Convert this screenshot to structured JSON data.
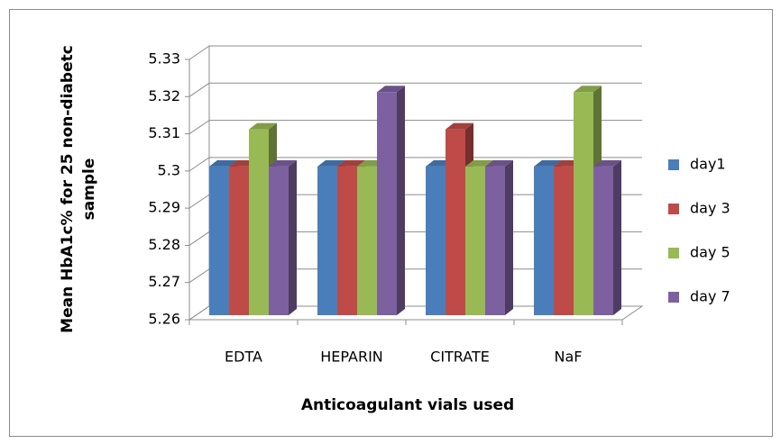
{
  "chart_data": {
    "type": "bar3d",
    "ylabel": [
      "Mean HbA1c% for 25 non-diabetc",
      "sample"
    ],
    "xlabel": "Anticoagulant vials used",
    "categories": [
      "EDTA",
      "HEPARIN",
      "CITRATE",
      "NaF"
    ],
    "series": [
      {
        "name": "day1",
        "color": "#4a7ebb",
        "values": [
          5.3,
          5.3,
          5.3,
          5.3
        ]
      },
      {
        "name": "day 3",
        "color": "#be4b48",
        "values": [
          5.3,
          5.3,
          5.31,
          5.3
        ]
      },
      {
        "name": "day 5",
        "color": "#98b954",
        "values": [
          5.31,
          5.3,
          5.3,
          5.32
        ]
      },
      {
        "name": "day 7",
        "color": "#7d60a0",
        "values": [
          5.3,
          5.32,
          5.3,
          5.3
        ]
      }
    ],
    "ylim": [
      5.26,
      5.33
    ],
    "yticks": [
      5.26,
      5.27,
      5.28,
      5.29,
      5.3,
      5.31,
      5.32,
      5.33
    ],
    "grid": true,
    "legend": "right"
  }
}
